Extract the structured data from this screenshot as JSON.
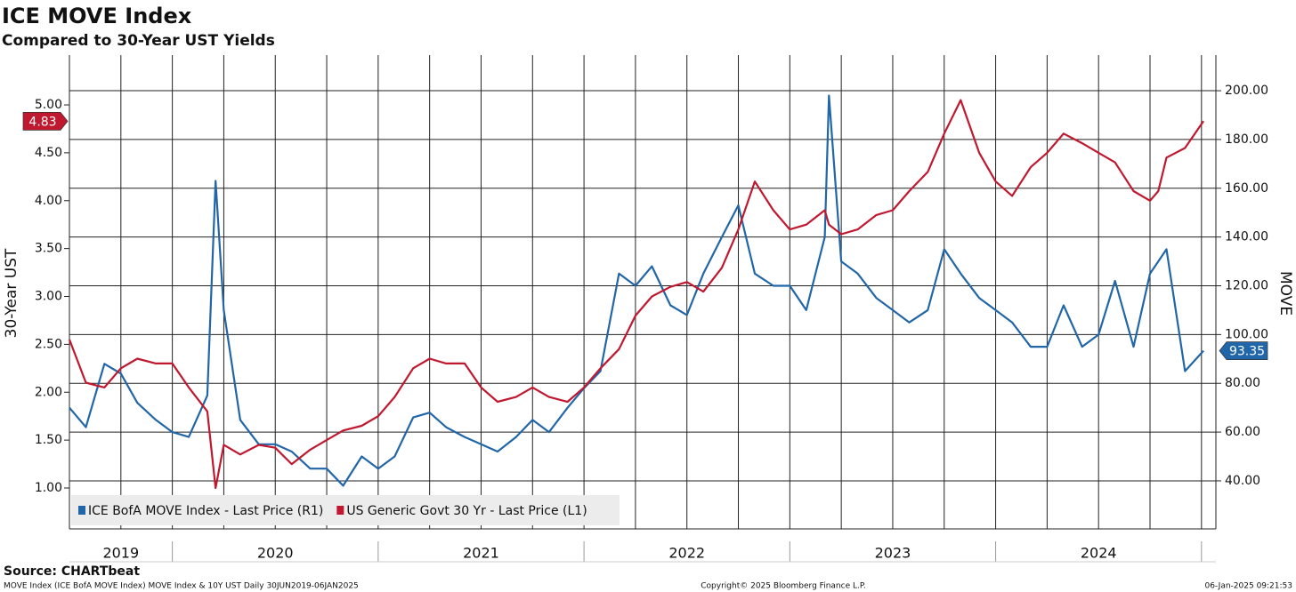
{
  "chart_data": {
    "type": "line",
    "title": "ICE MOVE Index",
    "subtitle": "Compared to 30-Year UST Yields",
    "y_label": "30-Year UST",
    "y2_label": "MOVE",
    "source": "Source: CHARTbeat",
    "footer_left": "MOVE Index (ICE BofA MOVE Index) MOVE Index & 10Y UST  Daily 30JUN2019-06JAN2025",
    "footer_center": "Copyright© 2025 Bloomberg Finance L.P.",
    "footer_right": "06-Jan-2025 09:21:53",
    "legend": "lower left",
    "grid": true,
    "x": [
      2019.5,
      2019.58,
      2019.67,
      2019.75,
      2019.83,
      2019.92,
      2020,
      2020.08,
      2020.17,
      2020.21,
      2020.25,
      2020.33,
      2020.42,
      2020.5,
      2020.58,
      2020.67,
      2020.75,
      2020.83,
      2020.92,
      2021,
      2021.08,
      2021.17,
      2021.25,
      2021.33,
      2021.42,
      2021.5,
      2021.58,
      2021.67,
      2021.75,
      2021.83,
      2021.92,
      2022,
      2022.08,
      2022.17,
      2022.25,
      2022.33,
      2022.42,
      2022.5,
      2022.58,
      2022.67,
      2022.75,
      2022.83,
      2022.92,
      2023,
      2023.08,
      2023.17,
      2023.19,
      2023.25,
      2023.33,
      2023.42,
      2023.5,
      2023.58,
      2023.67,
      2023.75,
      2023.83,
      2023.92,
      2024,
      2024.08,
      2024.17,
      2024.25,
      2024.33,
      2024.42,
      2024.5,
      2024.58,
      2024.67,
      2024.75,
      2024.79,
      2024.83,
      2024.92,
      2025.01
    ],
    "xlim": [
      2019.5,
      2025.07
    ],
    "xticks": [
      2019.5,
      2019.75,
      2020,
      2020.25,
      2020.5,
      2020.75,
      2021,
      2021.25,
      2021.5,
      2021.75,
      2022,
      2022.25,
      2022.5,
      2022.75,
      2023,
      2023.25,
      2023.5,
      2023.75,
      2024,
      2024.25,
      2024.5,
      2024.75,
      2025
    ],
    "xtick_labels": [
      {
        "value": 2019.75,
        "label": "2019"
      },
      {
        "value": 2020.5,
        "label": "2020"
      },
      {
        "value": 2021.5,
        "label": "2021"
      },
      {
        "value": 2022.5,
        "label": "2022"
      },
      {
        "value": 2023.5,
        "label": "2023"
      },
      {
        "value": 2024.5,
        "label": "2024"
      }
    ],
    "ylim": [
      0.573,
      5.52
    ],
    "yticks": [
      {
        "value": 1,
        "label": "1.00"
      },
      {
        "value": 1.5,
        "label": "1.50"
      },
      {
        "value": 2,
        "label": "2.00"
      },
      {
        "value": 2.5,
        "label": "2.50"
      },
      {
        "value": 3,
        "label": "3.00"
      },
      {
        "value": 3.5,
        "label": "3.50"
      },
      {
        "value": 4,
        "label": "4.00"
      },
      {
        "value": 4.5,
        "label": "4.50"
      },
      {
        "value": 5,
        "label": "5.00"
      }
    ],
    "y2lim": [
      20.3,
      214.6
    ],
    "y2ticks": [
      {
        "value": 40,
        "label": "40.00"
      },
      {
        "value": 60,
        "label": "60.00"
      },
      {
        "value": 80,
        "label": "80.00"
      },
      {
        "value": 100,
        "label": "100.00"
      },
      {
        "value": 120,
        "label": "120.00"
      },
      {
        "value": 140,
        "label": "140.00"
      },
      {
        "value": 160,
        "label": "160.00"
      },
      {
        "value": 180,
        "label": "180.00"
      },
      {
        "value": 200,
        "label": "200.00"
      }
    ],
    "series": [
      {
        "name": "ICE BofA MOVE Index - Last Price (R1)",
        "color": "#2166a8",
        "axis": "y2",
        "values": [
          70,
          62,
          88,
          84,
          72,
          65,
          60,
          58,
          75,
          163,
          110,
          65,
          55,
          55,
          52,
          45,
          45,
          38,
          50,
          45,
          50,
          66,
          68,
          62,
          58,
          55,
          52,
          58,
          65,
          60,
          70,
          78,
          85,
          125,
          120,
          128,
          112,
          108,
          125,
          140,
          153,
          125,
          120,
          120,
          110,
          140,
          198,
          130,
          125,
          115,
          110,
          105,
          110,
          135,
          125,
          115,
          110,
          105,
          95,
          95,
          112,
          95,
          100,
          122,
          95,
          125,
          130,
          135,
          85,
          93.35
        ],
        "value_labels": [
          null,
          null,
          null,
          null,
          null,
          null,
          null,
          null,
          null,
          null,
          null,
          null,
          null,
          null,
          null,
          null,
          null,
          null,
          null,
          null,
          null,
          null,
          null,
          null,
          null,
          null,
          null,
          null,
          null,
          null,
          null,
          null,
          null,
          null,
          null,
          null,
          null,
          null,
          null,
          null,
          null,
          null,
          null,
          null,
          null,
          null,
          null,
          null,
          null,
          null,
          null,
          null,
          null,
          null,
          null,
          null,
          null,
          null,
          null,
          null,
          null,
          null,
          null,
          null,
          null,
          null,
          null,
          null,
          null,
          "93.35"
        ]
      },
      {
        "name": "US Generic Govt 30 Yr - Last Price (L1)",
        "color": "#c0182f",
        "axis": "y",
        "values": [
          2.55,
          2.1,
          2.05,
          2.25,
          2.35,
          2.3,
          2.3,
          2.05,
          1.8,
          1.0,
          1.45,
          1.35,
          1.45,
          1.42,
          1.25,
          1.4,
          1.5,
          1.6,
          1.65,
          1.75,
          1.95,
          2.25,
          2.35,
          2.3,
          2.3,
          2.05,
          1.9,
          1.95,
          2.05,
          1.95,
          1.9,
          2.05,
          2.25,
          2.45,
          2.8,
          3.0,
          3.1,
          3.15,
          3.05,
          3.3,
          3.7,
          4.2,
          3.9,
          3.7,
          3.75,
          3.9,
          3.75,
          3.65,
          3.7,
          3.85,
          3.9,
          4.1,
          4.3,
          4.7,
          5.05,
          4.5,
          4.2,
          4.05,
          4.35,
          4.5,
          4.7,
          4.6,
          4.5,
          4.4,
          4.1,
          4.0,
          4.1,
          4.45,
          4.55,
          4.83
        ],
        "value_labels": [
          null,
          null,
          null,
          null,
          null,
          null,
          null,
          null,
          null,
          null,
          null,
          null,
          null,
          null,
          null,
          null,
          null,
          null,
          null,
          null,
          null,
          null,
          null,
          null,
          null,
          null,
          null,
          null,
          null,
          null,
          null,
          null,
          null,
          null,
          null,
          null,
          null,
          null,
          null,
          null,
          null,
          null,
          null,
          null,
          null,
          null,
          null,
          null,
          null,
          null,
          null,
          null,
          null,
          null,
          null,
          null,
          null,
          null,
          null,
          null,
          null,
          null,
          null,
          null,
          null,
          null,
          null,
          null,
          null,
          "4.83"
        ]
      }
    ]
  }
}
